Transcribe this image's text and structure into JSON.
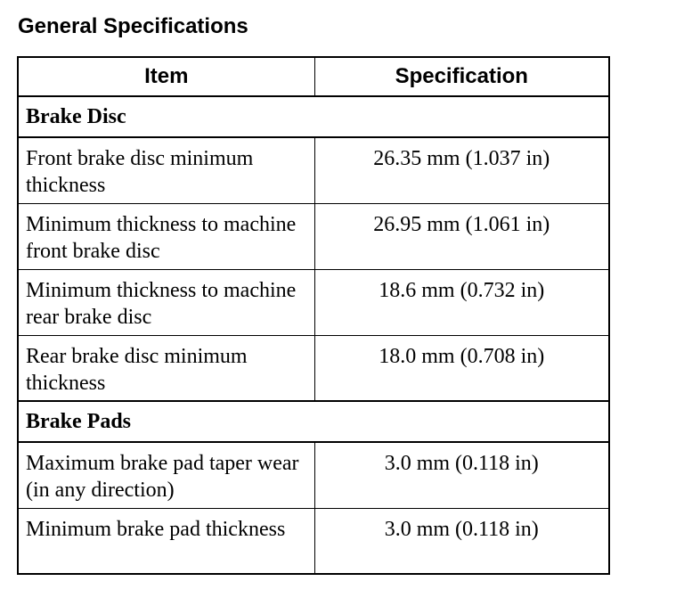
{
  "title": "General Specifications",
  "table": {
    "headers": [
      "Item",
      "Specification"
    ],
    "sections": [
      {
        "name": "Brake Disc",
        "rows": [
          {
            "item": "Front brake disc minimum thickness",
            "spec": "26.35 mm (1.037 in)"
          },
          {
            "item": "Minimum thickness to machine front brake disc",
            "spec": "26.95 mm (1.061 in)"
          },
          {
            "item": "Minimum thickness to machine rear brake disc",
            "spec": "18.6 mm (0.732 in)"
          },
          {
            "item": "Rear brake disc minimum thickness",
            "spec": "18.0 mm (0.708 in)"
          }
        ]
      },
      {
        "name": "Brake Pads",
        "rows": [
          {
            "item": "Maximum brake pad taper wear (in any direction)",
            "spec": "3.0 mm (0.118 in)"
          },
          {
            "item": "Minimum brake pad thickness",
            "spec": "3.0 mm (0.118 in)"
          }
        ]
      }
    ]
  }
}
